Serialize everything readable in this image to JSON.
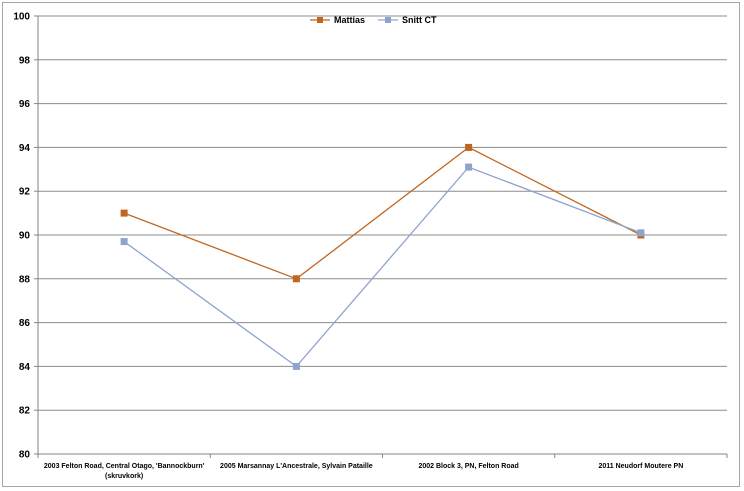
{
  "chart_data": {
    "type": "line",
    "categories": [
      [
        "2003 Felton Road, Central Otago, 'Bannockburn'",
        "(skruvkork)"
      ],
      [
        "2005 Marsannay L'Ancestrale, Sylvain Pataille"
      ],
      [
        "2002 Block 3, PN, Felton Road"
      ],
      [
        "2011 Neudorf Moutere PN"
      ]
    ],
    "series": [
      {
        "name": "Mattias",
        "values": [
          91,
          88,
          94,
          90
        ],
        "color": "#c0651f",
        "marker": "#c0651f"
      },
      {
        "name": "Snitt CT",
        "values": [
          89.7,
          84,
          93.1,
          90.1
        ],
        "color": "#8ea3cd",
        "marker": "#8ea3cd"
      }
    ],
    "ylim": [
      80,
      100
    ],
    "yticks": [
      "80",
      "82",
      "84",
      "86",
      "88",
      "90",
      "92",
      "94",
      "96",
      "98",
      "100"
    ],
    "grid": true,
    "legend_position": "top-center"
  }
}
